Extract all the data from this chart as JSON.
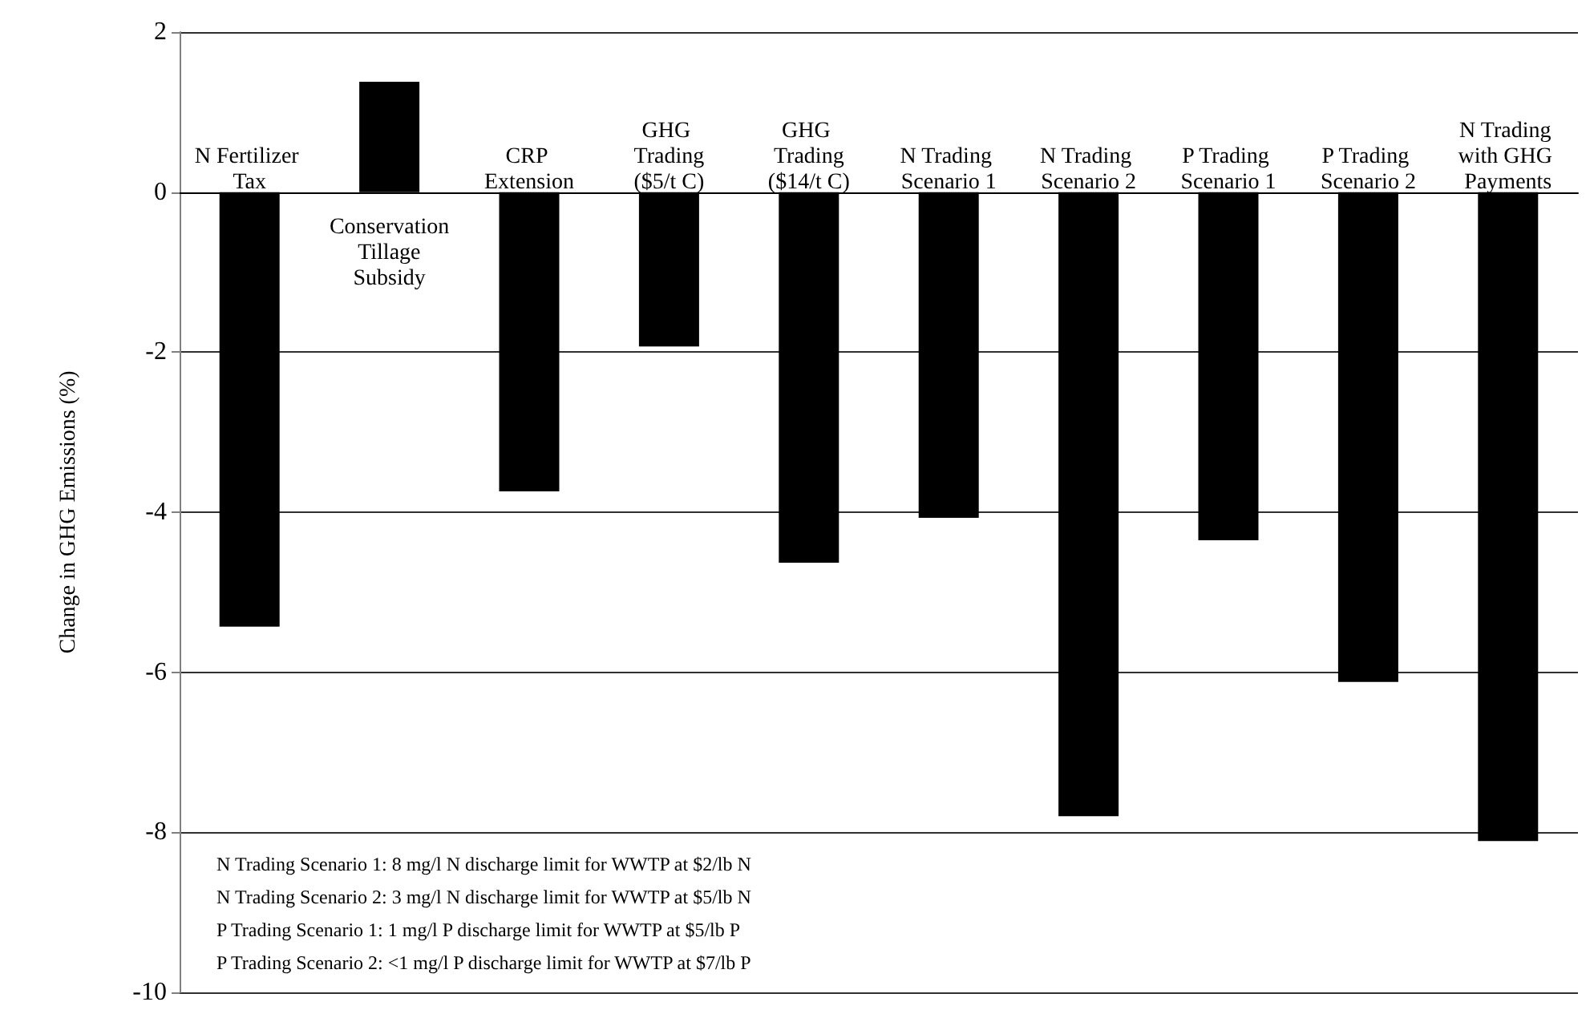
{
  "chart_data": {
    "type": "bar",
    "ylabel": "Change in GHG Emissions (%)",
    "categories": [
      "N Fertilizer Tax",
      "Conservation Tillage Subsidy",
      "CRP Extension",
      "GHG Trading ($5/t C)",
      "GHG Trading ($14/t C)",
      "N Trading Scenario 1",
      "N Trading Scenario 2",
      "P Trading Scenario 1",
      "P Trading Scenario 2",
      "N Trading with GHG Payments"
    ],
    "values": [
      -5.43,
      1.38,
      -3.74,
      -1.93,
      -4.63,
      -4.07,
      -7.8,
      -4.35,
      -6.12,
      -8.11
    ],
    "color": "#000000",
    "ylim": [
      -10,
      2
    ],
    "yticks": [
      -10,
      -8,
      -6,
      -4,
      -2,
      0,
      2
    ],
    "grid": "y",
    "annotations": [
      "N Trading Scenario 1: 8 mg/l N discharge limit for WWTP at $2/lb N",
      "N Trading Scenario 2: 3 mg/l N discharge limit for WWTP at $5/lb N",
      "P Trading Scenario 1: 1 mg/l P discharge limit for WWTP at $5/lb P",
      "P Trading Scenario 2: <1 mg/l P discharge limit for WWTP at $7/lb P"
    ]
  }
}
